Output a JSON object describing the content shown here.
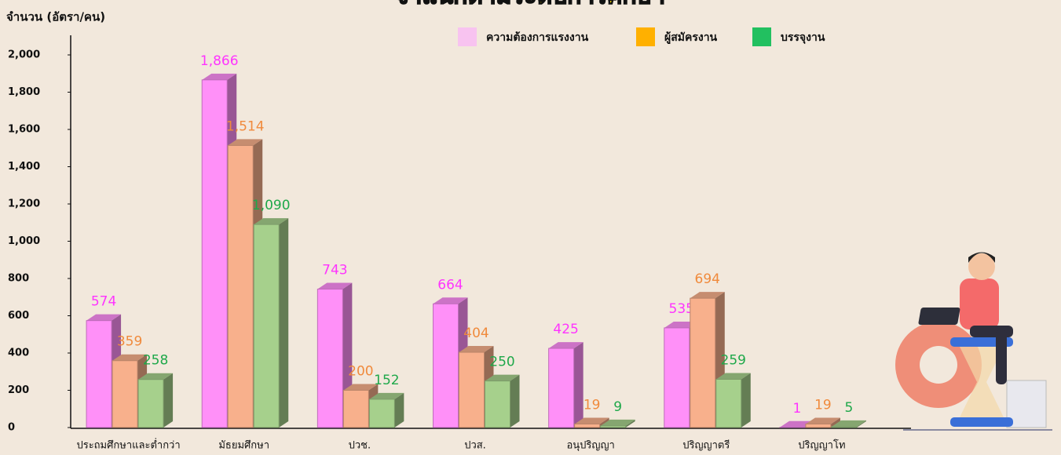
{
  "chart_data": {
    "type": "bar3d",
    "title": "จำแนกตามระดับการศึกษา",
    "y_axis_label": "จำนวน (อัตรา/คน)",
    "categories": [
      "ประถมศึกษาและต่ำกว่า",
      "มัธยมศึกษา",
      "ปวช.",
      "ปวส.",
      "อนุปริญญา",
      "ปริญญาตรี",
      "ปริญญาโท"
    ],
    "series": [
      {
        "name": "ความต้องการแรงงาน",
        "color": "#ff90f8",
        "legend_color": "#f8c3f0",
        "values": [
          574,
          1866,
          743,
          664,
          425,
          535,
          1
        ],
        "value_labels": [
          "574",
          "1,866",
          "743",
          "664",
          "425",
          "535",
          "1"
        ]
      },
      {
        "name": "ผู้สมัครงาน",
        "color": "#f8b08c",
        "legend_color": "#ffb000",
        "values": [
          359,
          1514,
          200,
          404,
          19,
          694,
          19
        ],
        "value_labels": [
          "359",
          "1,514",
          "200",
          "404",
          "19",
          "694",
          "19"
        ]
      },
      {
        "name": "บรรจุงาน",
        "color": "#a6d08c",
        "legend_color": "#22c060",
        "values": [
          258,
          1090,
          152,
          250,
          9,
          259,
          5
        ],
        "value_labels": [
          "258",
          "1,090",
          "152",
          "250",
          "9",
          "259",
          "5"
        ]
      }
    ],
    "ylim": [
      0,
      2000
    ],
    "yticks": [
      0,
      200,
      400,
      600,
      800,
      {
        "value": 1000,
        "label": "1,000"
      },
      {
        "value": 1200,
        "label": "1,200"
      },
      {
        "value": 1400,
        "label": "1,400"
      },
      {
        "value": 1600,
        "label": "1,600"
      },
      {
        "value": 1800,
        "label": "1,800"
      },
      {
        "value": 2000,
        "label": "2,000"
      }
    ]
  }
}
